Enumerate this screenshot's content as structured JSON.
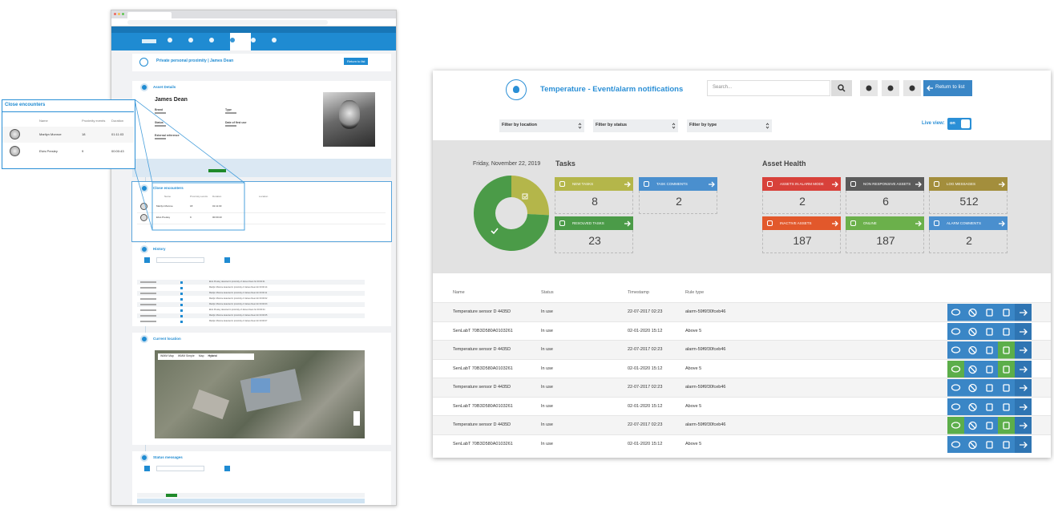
{
  "detail_page": {
    "title": "Private personal proximity | James Dean",
    "back": "Return to list",
    "asset_details": "Asset Details",
    "person": "James Dean",
    "fields": [
      "Brand",
      "Type",
      "Status",
      "Date of first use",
      "External reference"
    ],
    "close_encounters": "Close encounters",
    "encounter_headers": [
      "Name",
      "Proximity events",
      "Duration",
      "Location"
    ],
    "encounters": [
      [
        "Marilyn Monroe",
        "18",
        "01:11:03"
      ],
      [
        "Elvis Presley",
        "9",
        "00:00:43"
      ]
    ],
    "history": "History",
    "history_rows": [
      "Elvis Presley detected in proximity of James Dean for 00:00:01",
      "Marilyn Monroe detected in proximity of James Dean for 00:00:14",
      "Marilyn Monroe detected in proximity of James Dean for 00:00:11",
      "Marilyn Monroe detected in proximity of James Dean for 00:00:02",
      "Marilyn Monroe detected in proximity of James Dean for 00:00:03",
      "Elvis Presley detected in proximity of James Dean for 00:00:04",
      "Marilyn Monroe detected in proximity of James Dean for 00:00:05",
      "Marilyn Monroe detected in proximity of James Dean for 00:00:07"
    ],
    "current_location": "Current location",
    "map_tabs": [
      "WMM Map",
      "WMM Simple",
      "Map",
      "Hybrid"
    ],
    "status_messages": "Status messages"
  },
  "callout": {
    "title": "Close encounters",
    "headers": [
      "Name",
      "Proximity events",
      "Duration"
    ],
    "rows": [
      [
        "Marilyn Monroe",
        "18",
        "01:11:03"
      ],
      [
        "Elvis Presley",
        "9",
        "00:00:43"
      ]
    ]
  },
  "dashboard": {
    "title": "Temperature - Event/alarm notifications",
    "search_placeholder": "Search...",
    "back": "Return to list",
    "filters": [
      "Filter by location",
      "Filter by status",
      "Filter by type"
    ],
    "live_view": "Live view:",
    "toggle": "on",
    "date": "Friday, November 22, 2019",
    "tasks_title": "Tasks",
    "tasks": [
      {
        "label": "NEW TASKS",
        "value": 8,
        "color": "#b4b64a"
      },
      {
        "label": "TASK COMMENTS",
        "value": 2,
        "color": "#4a8fce"
      },
      {
        "label": "RESOLVED TASKS",
        "value": 23,
        "color": "#4b9b48"
      }
    ],
    "health_title": "Asset Health",
    "health": [
      {
        "label": "ASSETS IN ALARM MODE",
        "value": 2,
        "color": "#d8413a"
      },
      {
        "label": "NON RESPONSIVE ASSETS",
        "value": 6,
        "color": "#5b5b5b"
      },
      {
        "label": "LOG MESSAGES",
        "value": 512,
        "color": "#a38e3c"
      },
      {
        "label": "INACTIVE ASSETS",
        "value": 187,
        "color": "#e2582b"
      },
      {
        "label": "ONLINE",
        "value": 187,
        "color": "#6bb04b"
      },
      {
        "label": "ALARM COMMENTS",
        "value": 2,
        "color": "#4a8fce"
      }
    ],
    "columns": [
      "Name",
      "Status",
      "Timestamp",
      "Rule type"
    ],
    "rows": [
      {
        "cells": [
          "Temperature sensor D 4435D",
          "In use",
          "22-07-2017 02:23",
          "alarm-59f6f30fceb46"
        ],
        "comment_color": "#3a86c6",
        "task_color": "#3a86c6"
      },
      {
        "cells": [
          "SenLabT 70B3D580A0103261",
          "In use",
          "02-01-2020 15:12",
          "Above 5"
        ],
        "comment_color": "#3a86c6",
        "task_color": "#3a86c6"
      },
      {
        "cells": [
          "Temperature sensor D 4435D",
          "In use",
          "22-07-2017 02:23",
          "alarm-59f6f30fceb46"
        ],
        "comment_color": "#3a86c6",
        "task_color": "#5cae4a"
      },
      {
        "cells": [
          "SenLabT 70B3D580A0103261",
          "In use",
          "02-01-2020 15:12",
          "Above 5"
        ],
        "comment_color": "#5cae4a",
        "task_color": "#5cae4a"
      },
      {
        "cells": [
          "Temperature sensor D 4435D",
          "In use",
          "22-07-2017 02:23",
          "alarm-59f6f30fceb46"
        ],
        "comment_color": "#3a86c6",
        "task_color": "#3a86c6"
      },
      {
        "cells": [
          "SenLabT 70B3D580A0103261",
          "In use",
          "02-01-2020 15:12",
          "Above 5"
        ],
        "comment_color": "#3a86c6",
        "task_color": "#3a86c6"
      },
      {
        "cells": [
          "Temperature sensor D 4435D",
          "In use",
          "22-07-2017 02:23",
          "alarm-59f6f30fceb46"
        ],
        "comment_color": "#5cae4a",
        "task_color": "#5cae4a"
      },
      {
        "cells": [
          "SenLabT 70B3D580A0103261",
          "In use",
          "02-01-2020 15:12",
          "Above 5"
        ],
        "comment_color": "#3a86c6",
        "task_color": "#3a86c6"
      }
    ]
  }
}
